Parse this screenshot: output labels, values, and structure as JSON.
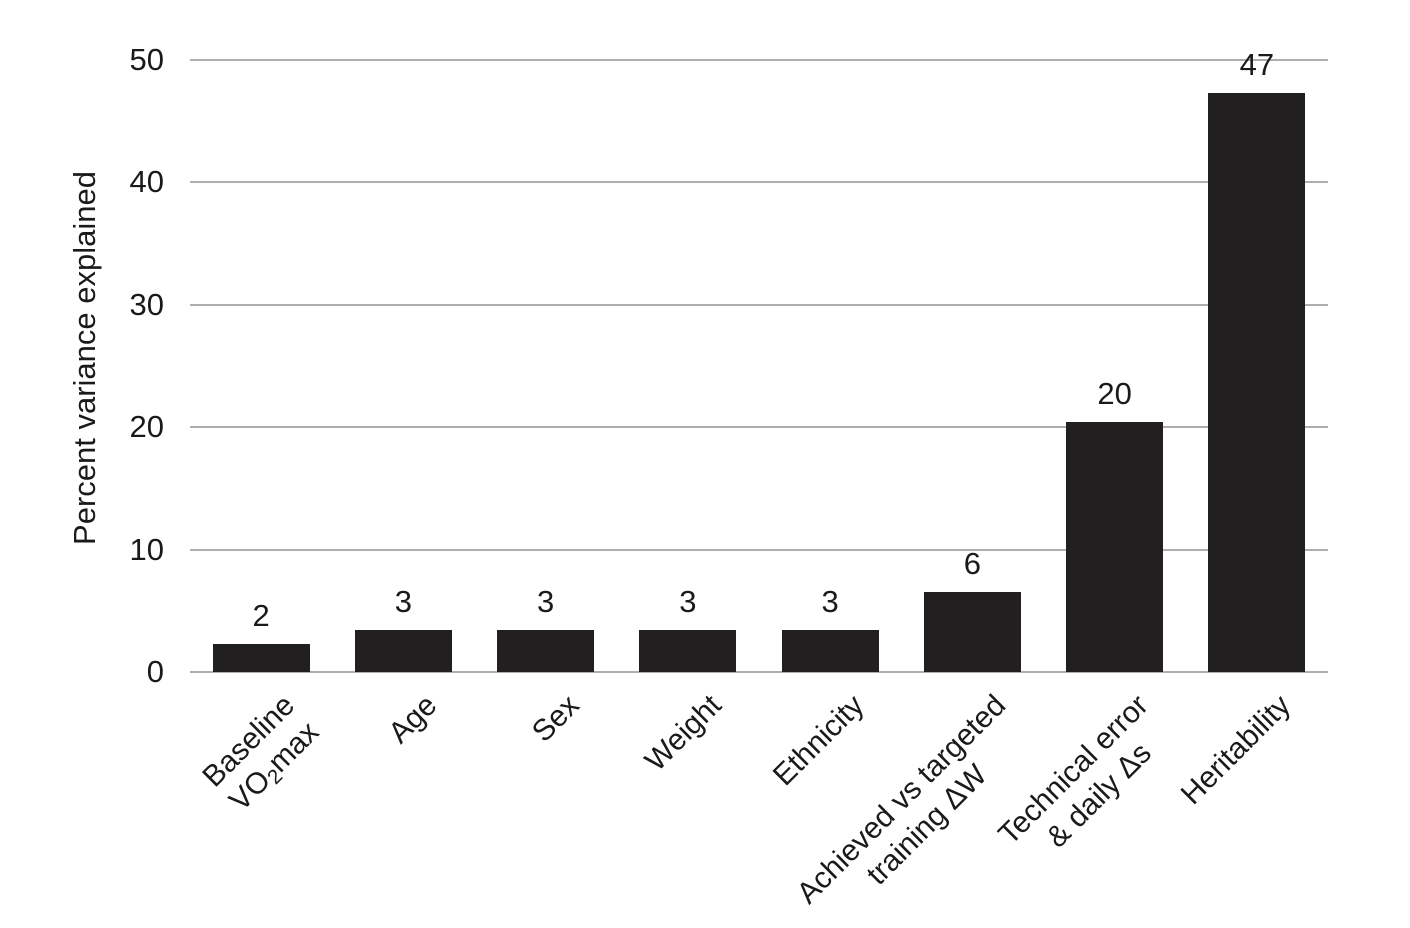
{
  "chart_data": {
    "type": "bar",
    "title": "",
    "xlabel": "",
    "ylabel": "Percent variance explained",
    "ylim": [
      0,
      50
    ],
    "yticks": [
      0,
      10,
      20,
      30,
      40,
      50
    ],
    "grid": "horizontal-gridlines-on",
    "legend": "none",
    "categories": [
      "Baseline VO2max",
      "Age",
      "Sex",
      "Weight",
      "Ethnicity",
      "Achieved vs targeted training ΔW",
      "Technical error & daily Δs",
      "Heritability"
    ],
    "values": [
      2,
      3,
      3,
      3,
      3,
      6,
      20,
      47
    ],
    "value_labels": [
      "2",
      "3",
      "3",
      "3",
      "3",
      "6",
      "20",
      "47"
    ],
    "bar_top_estimates_from_axis": [
      2.3,
      3.4,
      3.4,
      3.4,
      3.4,
      6.5,
      20.4,
      47.3
    ],
    "category_label_rotation_deg": 45,
    "category_label_lines": [
      [
        [
          {
            "t": "Baseline"
          }
        ],
        [
          {
            "t": "VO"
          },
          {
            "t": "2",
            "sub": true
          },
          {
            "t": "max"
          }
        ]
      ],
      [
        [
          {
            "t": "Age"
          }
        ]
      ],
      [
        [
          {
            "t": "Sex"
          }
        ]
      ],
      [
        [
          {
            "t": "Weight"
          }
        ]
      ],
      [
        [
          {
            "t": "Ethnicity"
          }
        ]
      ],
      [
        [
          {
            "t": "Achieved vs targeted"
          }
        ],
        [
          {
            "t": "training ΔW"
          }
        ]
      ],
      [
        [
          {
            "t": "Technical error"
          }
        ],
        [
          {
            "t": "& daily Δs"
          }
        ]
      ],
      [
        [
          {
            "t": "Heritability"
          }
        ]
      ]
    ],
    "colors": {
      "bar": "#221f20",
      "gridline": "#aeaeae",
      "text": "#1a1a1a",
      "background": "#ffffff"
    }
  }
}
